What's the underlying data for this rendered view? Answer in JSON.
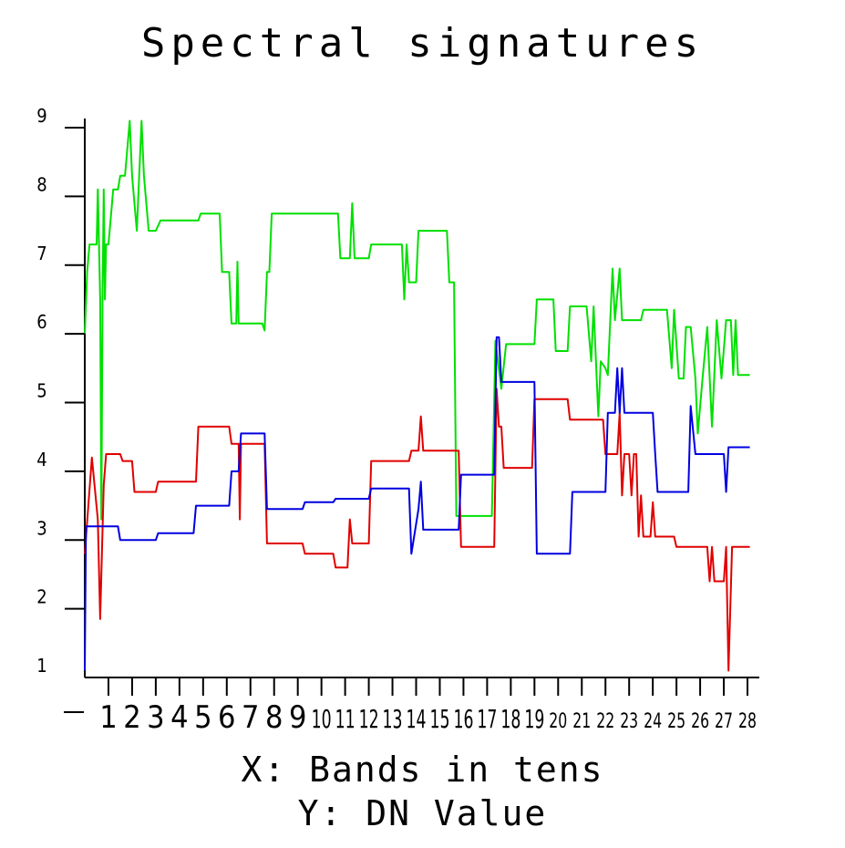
{
  "chart_data": {
    "type": "line",
    "title": "Spectral signatures",
    "xlabel": "X: Bands in tens",
    "ylabel": "Y: DN Value",
    "xlim": [
      0,
      28.5
    ],
    "ylim": [
      1,
      9
    ],
    "x_ticks": [
      "1",
      "2",
      "3",
      "4",
      "5",
      "6",
      "7",
      "8",
      "9",
      "10",
      "11",
      "12",
      "13",
      "14",
      "15",
      "16",
      "17",
      "18",
      "19",
      "20",
      "21",
      "22",
      "23",
      "24",
      "25",
      "26",
      "27",
      "28"
    ],
    "y_ticks": [
      "1",
      "2",
      "3",
      "4",
      "5",
      "6",
      "7",
      "8",
      "9"
    ],
    "grid": false,
    "series": [
      {
        "color": "#00e000",
        "points": [
          [
            0,
            6.0
          ],
          [
            0.1,
            6.9
          ],
          [
            0.2,
            7.3
          ],
          [
            0.5,
            7.3
          ],
          [
            0.55,
            8.1
          ],
          [
            0.6,
            7.3
          ],
          [
            0.65,
            6.5
          ],
          [
            0.7,
            3.3
          ],
          [
            0.75,
            6.5
          ],
          [
            0.8,
            8.1
          ],
          [
            0.85,
            6.5
          ],
          [
            0.9,
            7.3
          ],
          [
            1.0,
            7.3
          ],
          [
            1.2,
            8.1
          ],
          [
            1.4,
            8.1
          ],
          [
            1.5,
            8.3
          ],
          [
            1.7,
            8.3
          ],
          [
            1.9,
            9.1
          ],
          [
            2.0,
            8.3
          ],
          [
            2.2,
            7.5
          ],
          [
            2.4,
            9.1
          ],
          [
            2.5,
            8.3
          ],
          [
            2.7,
            7.5
          ],
          [
            3.0,
            7.5
          ],
          [
            3.2,
            7.65
          ],
          [
            4.8,
            7.65
          ],
          [
            4.9,
            7.75
          ],
          [
            5.7,
            7.75
          ],
          [
            5.8,
            6.9
          ],
          [
            6.1,
            6.9
          ],
          [
            6.2,
            6.15
          ],
          [
            6.4,
            6.15
          ],
          [
            6.45,
            7.05
          ],
          [
            6.5,
            6.15
          ],
          [
            7.5,
            6.15
          ],
          [
            7.6,
            6.05
          ],
          [
            7.7,
            6.9
          ],
          [
            7.8,
            6.9
          ],
          [
            7.9,
            7.75
          ],
          [
            10.7,
            7.75
          ],
          [
            10.8,
            7.1
          ],
          [
            11.2,
            7.1
          ],
          [
            11.3,
            7.9
          ],
          [
            11.4,
            7.1
          ],
          [
            12.0,
            7.1
          ],
          [
            12.1,
            7.3
          ],
          [
            13.4,
            7.3
          ],
          [
            13.5,
            6.5
          ],
          [
            13.6,
            7.3
          ],
          [
            13.7,
            6.75
          ],
          [
            14.0,
            6.75
          ],
          [
            14.1,
            7.5
          ],
          [
            15.3,
            7.5
          ],
          [
            15.4,
            6.75
          ],
          [
            15.6,
            6.75
          ],
          [
            15.7,
            3.35
          ],
          [
            17.2,
            3.35
          ],
          [
            17.35,
            5.9
          ],
          [
            17.6,
            5.2
          ],
          [
            17.8,
            5.85
          ],
          [
            19.0,
            5.85
          ],
          [
            19.1,
            6.5
          ],
          [
            19.8,
            6.5
          ],
          [
            19.9,
            5.75
          ],
          [
            20.4,
            5.75
          ],
          [
            20.5,
            6.4
          ],
          [
            21.2,
            6.4
          ],
          [
            21.4,
            5.6
          ],
          [
            21.5,
            6.4
          ],
          [
            21.7,
            4.8
          ],
          [
            21.8,
            5.6
          ],
          [
            22.0,
            5.5
          ],
          [
            22.1,
            5.4
          ],
          [
            22.3,
            6.95
          ],
          [
            22.4,
            6.2
          ],
          [
            22.6,
            6.95
          ],
          [
            22.7,
            6.2
          ],
          [
            23.5,
            6.2
          ],
          [
            23.6,
            6.35
          ],
          [
            24.6,
            6.35
          ],
          [
            24.8,
            5.5
          ],
          [
            24.9,
            6.35
          ],
          [
            25.1,
            5.35
          ],
          [
            25.3,
            5.35
          ],
          [
            25.4,
            6.1
          ],
          [
            25.6,
            6.1
          ],
          [
            25.8,
            5.35
          ],
          [
            25.9,
            4.55
          ],
          [
            26.1,
            5.35
          ],
          [
            26.3,
            6.1
          ],
          [
            26.5,
            4.65
          ],
          [
            26.7,
            6.2
          ],
          [
            26.9,
            5.35
          ],
          [
            27.1,
            6.2
          ],
          [
            27.3,
            6.2
          ],
          [
            27.4,
            5.4
          ],
          [
            27.5,
            6.2
          ],
          [
            27.6,
            5.4
          ],
          [
            28.1,
            5.4
          ]
        ]
      },
      {
        "color": "#e00000",
        "points": [
          [
            0,
            2.8
          ],
          [
            0.3,
            4.2
          ],
          [
            0.55,
            3.3
          ],
          [
            0.65,
            1.85
          ],
          [
            0.8,
            3.8
          ],
          [
            0.9,
            4.25
          ],
          [
            1.5,
            4.25
          ],
          [
            1.6,
            4.15
          ],
          [
            2.0,
            4.15
          ],
          [
            2.1,
            3.7
          ],
          [
            3.0,
            3.7
          ],
          [
            3.1,
            3.85
          ],
          [
            4.7,
            3.85
          ],
          [
            4.8,
            4.65
          ],
          [
            6.1,
            4.65
          ],
          [
            6.2,
            4.4
          ],
          [
            6.5,
            4.4
          ],
          [
            6.55,
            3.3
          ],
          [
            6.6,
            4.4
          ],
          [
            7.6,
            4.4
          ],
          [
            7.7,
            2.95
          ],
          [
            9.2,
            2.95
          ],
          [
            9.3,
            2.8
          ],
          [
            10.5,
            2.8
          ],
          [
            10.6,
            2.6
          ],
          [
            11.1,
            2.6
          ],
          [
            11.2,
            3.3
          ],
          [
            11.3,
            2.95
          ],
          [
            12.0,
            2.95
          ],
          [
            12.1,
            4.15
          ],
          [
            13.7,
            4.15
          ],
          [
            13.8,
            4.3
          ],
          [
            14.1,
            4.3
          ],
          [
            14.2,
            4.8
          ],
          [
            14.3,
            4.3
          ],
          [
            15.8,
            4.3
          ],
          [
            15.9,
            2.9
          ],
          [
            17.3,
            2.9
          ],
          [
            17.4,
            5.2
          ],
          [
            17.5,
            4.65
          ],
          [
            17.6,
            4.65
          ],
          [
            17.7,
            4.05
          ],
          [
            18.9,
            4.05
          ],
          [
            19.0,
            5.05
          ],
          [
            20.4,
            5.05
          ],
          [
            20.5,
            4.75
          ],
          [
            21.9,
            4.75
          ],
          [
            22.0,
            4.25
          ],
          [
            22.5,
            4.25
          ],
          [
            22.6,
            4.85
          ],
          [
            22.7,
            3.65
          ],
          [
            22.8,
            4.25
          ],
          [
            23.0,
            4.25
          ],
          [
            23.1,
            3.65
          ],
          [
            23.2,
            4.25
          ],
          [
            23.3,
            4.25
          ],
          [
            23.4,
            3.05
          ],
          [
            23.5,
            3.65
          ],
          [
            23.6,
            3.05
          ],
          [
            23.9,
            3.05
          ],
          [
            24.0,
            3.55
          ],
          [
            24.1,
            3.05
          ],
          [
            24.9,
            3.05
          ],
          [
            25.0,
            2.9
          ],
          [
            26.3,
            2.9
          ],
          [
            26.4,
            2.4
          ],
          [
            26.5,
            2.9
          ],
          [
            26.6,
            2.4
          ],
          [
            27.0,
            2.4
          ],
          [
            27.1,
            2.9
          ],
          [
            27.2,
            1.1
          ],
          [
            27.35,
            2.9
          ],
          [
            28.1,
            2.9
          ]
        ]
      },
      {
        "color": "#0000e0",
        "points": [
          [
            0,
            1.1
          ],
          [
            0.05,
            3.2
          ],
          [
            1.4,
            3.2
          ],
          [
            1.5,
            3.0
          ],
          [
            3.0,
            3.0
          ],
          [
            3.1,
            3.1
          ],
          [
            4.6,
            3.1
          ],
          [
            4.7,
            3.5
          ],
          [
            6.1,
            3.5
          ],
          [
            6.2,
            4.0
          ],
          [
            6.5,
            4.0
          ],
          [
            6.6,
            4.55
          ],
          [
            7.6,
            4.55
          ],
          [
            7.7,
            3.45
          ],
          [
            9.2,
            3.45
          ],
          [
            9.3,
            3.55
          ],
          [
            10.5,
            3.55
          ],
          [
            10.6,
            3.6
          ],
          [
            12.0,
            3.6
          ],
          [
            12.1,
            3.75
          ],
          [
            13.7,
            3.75
          ],
          [
            13.8,
            2.8
          ],
          [
            14.1,
            3.45
          ],
          [
            14.2,
            3.85
          ],
          [
            14.3,
            3.15
          ],
          [
            15.8,
            3.15
          ],
          [
            15.9,
            3.95
          ],
          [
            17.3,
            3.95
          ],
          [
            17.4,
            5.95
          ],
          [
            17.5,
            5.95
          ],
          [
            17.6,
            5.3
          ],
          [
            19.0,
            5.3
          ],
          [
            19.1,
            2.8
          ],
          [
            20.5,
            2.8
          ],
          [
            20.6,
            3.7
          ],
          [
            22.0,
            3.7
          ],
          [
            22.1,
            4.85
          ],
          [
            22.4,
            4.85
          ],
          [
            22.5,
            5.5
          ],
          [
            22.6,
            4.85
          ],
          [
            22.7,
            5.5
          ],
          [
            22.8,
            4.85
          ],
          [
            24.0,
            4.85
          ],
          [
            24.1,
            4.25
          ],
          [
            24.2,
            3.7
          ],
          [
            25.5,
            3.7
          ],
          [
            25.6,
            4.95
          ],
          [
            25.8,
            4.25
          ],
          [
            27.0,
            4.25
          ],
          [
            27.1,
            3.7
          ],
          [
            27.2,
            4.35
          ],
          [
            28.1,
            4.35
          ]
        ]
      }
    ]
  }
}
